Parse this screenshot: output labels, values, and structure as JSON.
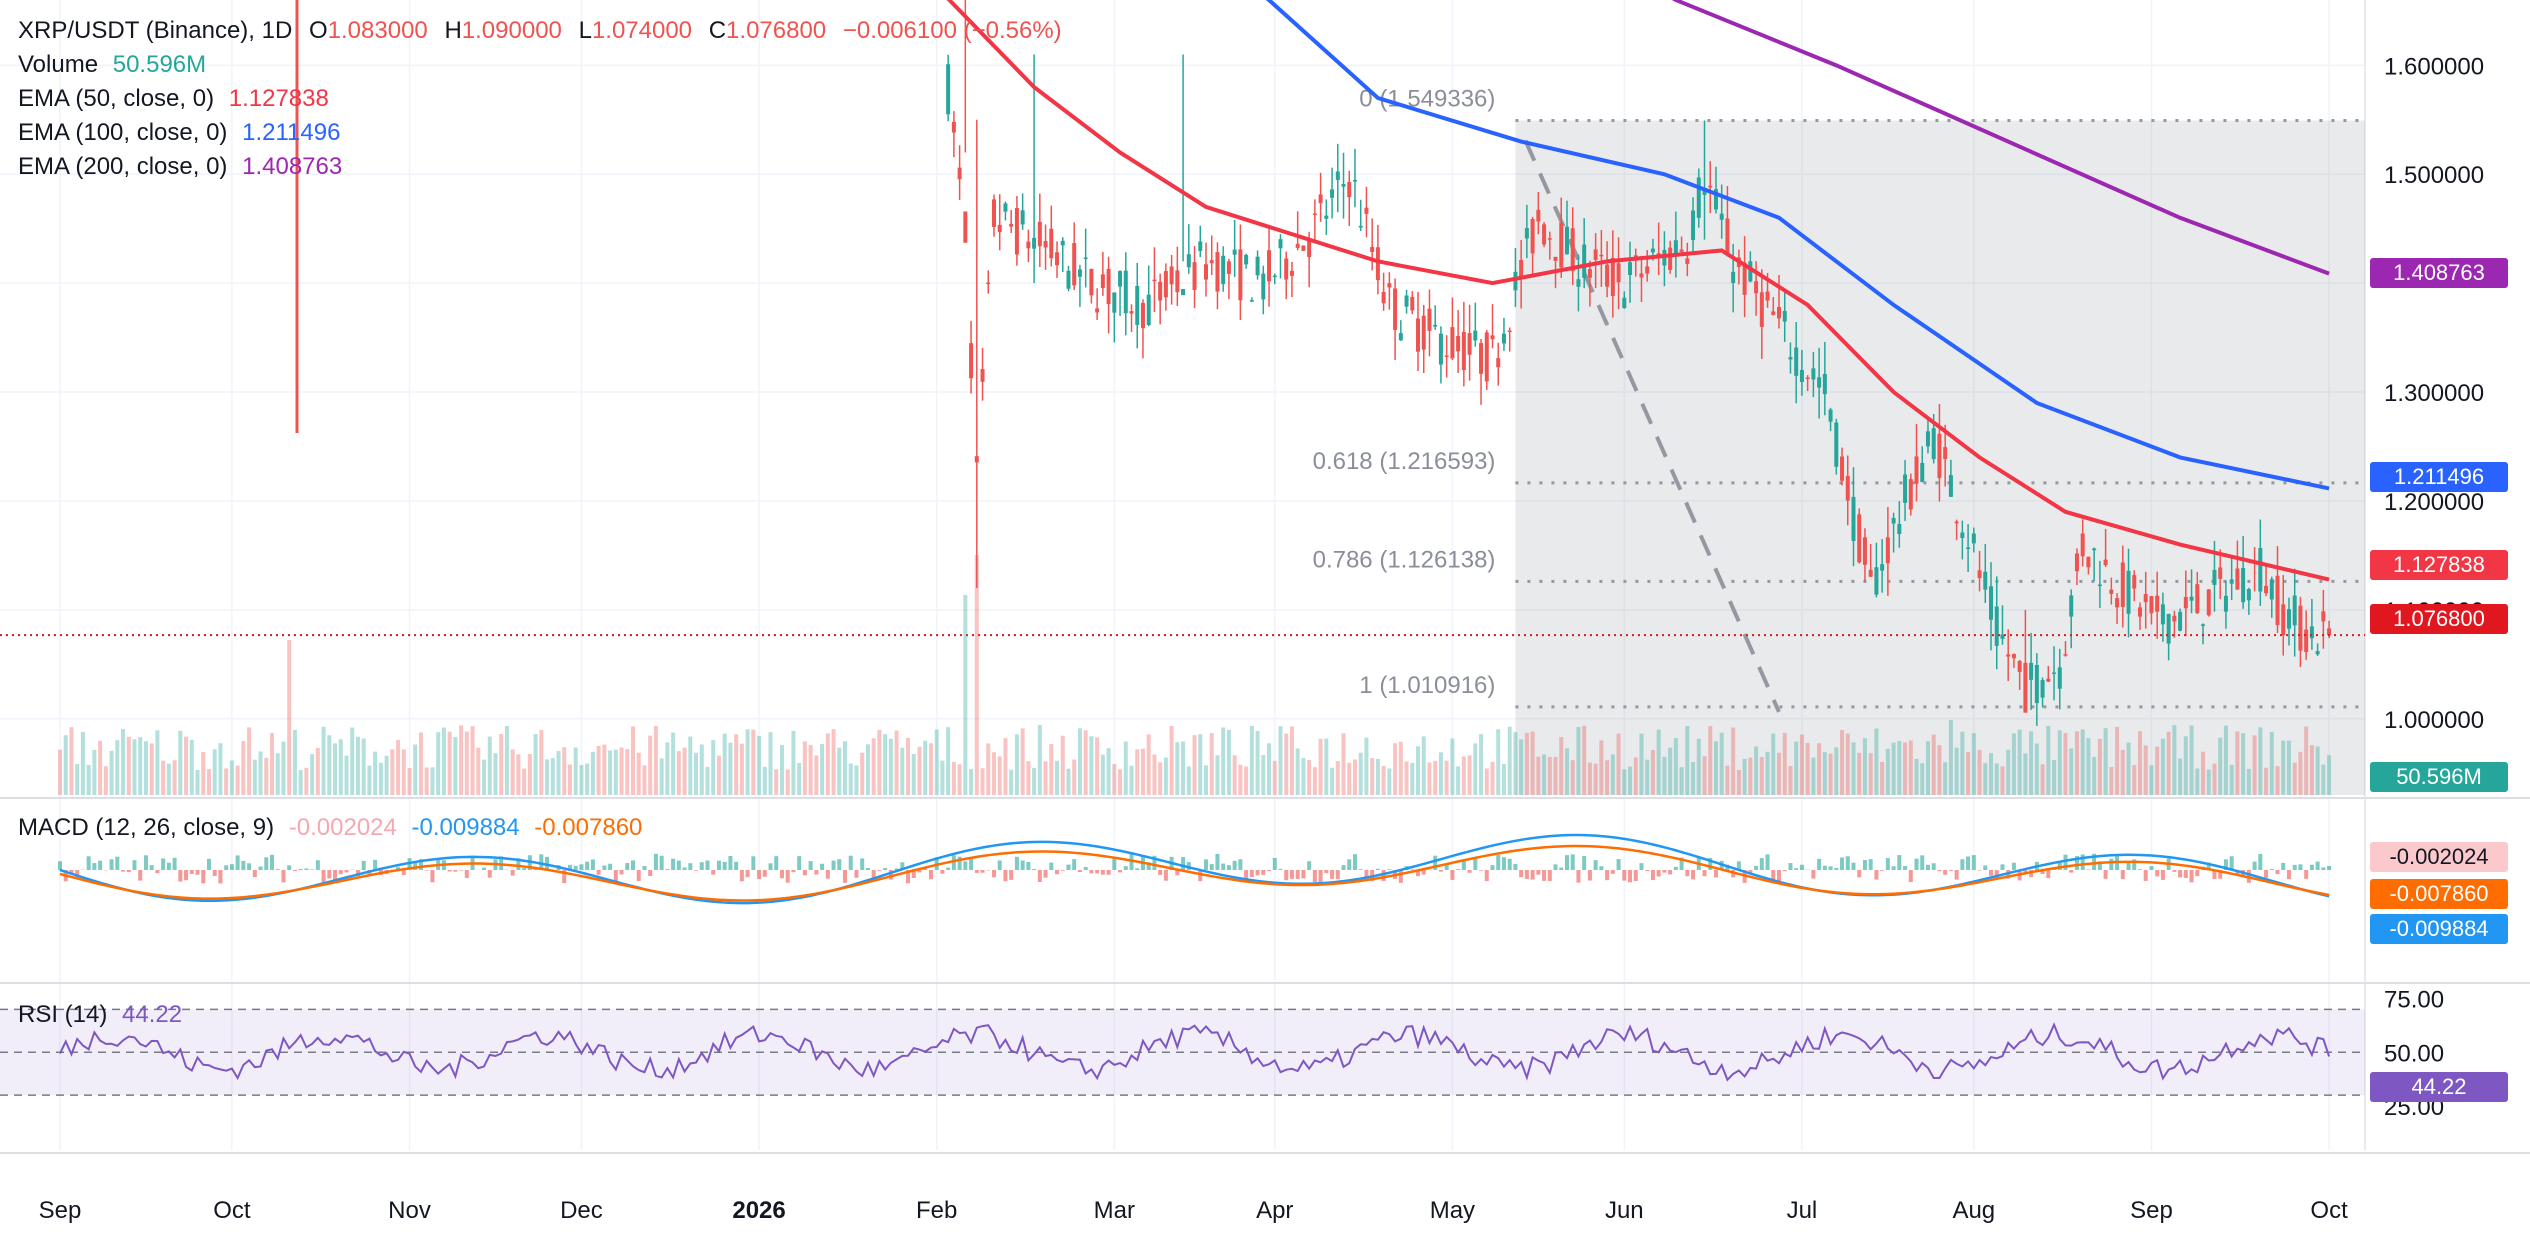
{
  "header": {
    "symbol": "XRP/USDT (Binance), 1D",
    "o_label": "O",
    "o_value": "1.083000",
    "h_label": "H",
    "h_value": "1.090000",
    "l_label": "L",
    "l_value": "1.074000",
    "c_label": "C",
    "c_value": "1.076800",
    "change": "−0.006100 (−0.56%)"
  },
  "indicators": {
    "volume_label": "Volume",
    "volume_value": "50.596M",
    "ema50_label": "EMA (50, close, 0)",
    "ema50_value": "1.127838",
    "ema100_label": "EMA (100, close, 0)",
    "ema100_value": "1.211496",
    "ema200_label": "EMA (200, close, 0)",
    "ema200_value": "1.408763",
    "macd_label": "MACD (12, 26, close, 9)",
    "macd_hist": "-0.002024",
    "macd_line": "-0.009884",
    "macd_signal": "-0.007860",
    "rsi_label": "RSI (14)",
    "rsi_value": "44.22"
  },
  "colors": {
    "up": "#26a69a",
    "down": "#ef5350",
    "ema50": "#f23645",
    "ema100": "#2962ff",
    "ema200": "#9c27b0",
    "macd": "#2196f3",
    "signal": "#ff6d00",
    "rsi": "#7e57c2",
    "fib": "#9598a1"
  },
  "chart_data": {
    "type": "candlestick",
    "price_axis": {
      "range": [
        0.93,
        1.66
      ],
      "ticks": [
        1.6,
        1.5,
        1.4,
        1.3,
        1.2,
        1.1,
        1.0
      ],
      "tick_labels": [
        "1.600000",
        "1.500000",
        "1.300000",
        "1.200000",
        "1.100000",
        "1.000000"
      ]
    },
    "time_axis": {
      "labels": [
        "Sep",
        "Oct",
        "Nov",
        "Dec",
        "2026",
        "Feb",
        "Mar",
        "Apr",
        "May",
        "Jun",
        "Jul",
        "Aug",
        "Sep",
        "Oct"
      ]
    },
    "last_close": 1.0768,
    "ema_last": {
      "ema50": 1.127838,
      "ema100": 1.211496,
      "ema200": 1.408763
    },
    "fibonacci": {
      "high": 1.549336,
      "low": 1.010916,
      "levels": [
        {
          "label": "0 (1.549336)",
          "value": 1.549336
        },
        {
          "label": "0.618 (1.216593)",
          "value": 1.216593
        },
        {
          "label": "0.786 (1.126138)",
          "value": 1.126138
        },
        {
          "label": "1 (1.010916)",
          "value": 1.010916
        }
      ]
    },
    "series_note": "",
    "candles_sampled": [
      {
        "date": "2026-02-01",
        "o": 1.58,
        "h": 1.66,
        "l": 1.52,
        "c": 1.6
      },
      {
        "date": "2026-02-05",
        "o": 1.52,
        "h": 1.55,
        "l": 1.12,
        "c": 1.22
      },
      {
        "date": "2026-02-07",
        "o": 1.22,
        "h": 1.5,
        "l": 1.18,
        "c": 1.46
      },
      {
        "date": "2026-03-17",
        "o": 1.46,
        "h": 1.61,
        "l": 1.42,
        "c": 1.52
      },
      {
        "date": "2026-04-15",
        "o": 1.4,
        "h": 1.49,
        "l": 1.36,
        "c": 1.45
      },
      {
        "date": "2026-05-13",
        "o": 1.48,
        "h": 1.549336,
        "l": 1.44,
        "c": 1.5
      },
      {
        "date": "2026-06-05",
        "o": 1.26,
        "h": 1.28,
        "l": 1.05,
        "c": 1.1
      },
      {
        "date": "2026-06-18",
        "o": 1.17,
        "h": 1.29,
        "l": 1.15,
        "c": 1.23
      },
      {
        "date": "2026-06-28",
        "o": 1.08,
        "h": 1.1,
        "l": 1.010916,
        "c": 1.04
      },
      {
        "date": "2026-07-30",
        "o": 1.083,
        "h": 1.09,
        "l": 1.074,
        "c": 1.0768
      }
    ],
    "volume_last": "50.596M",
    "macd_last": {
      "macd": -0.009884,
      "signal": -0.00786,
      "hist": -0.002024
    },
    "rsi_axis": {
      "ticks": [
        "75.00",
        "50.00",
        "25.00"
      ],
      "levels": [
        70,
        50,
        30
      ]
    },
    "rsi_last": 44.22,
    "grid": true
  }
}
